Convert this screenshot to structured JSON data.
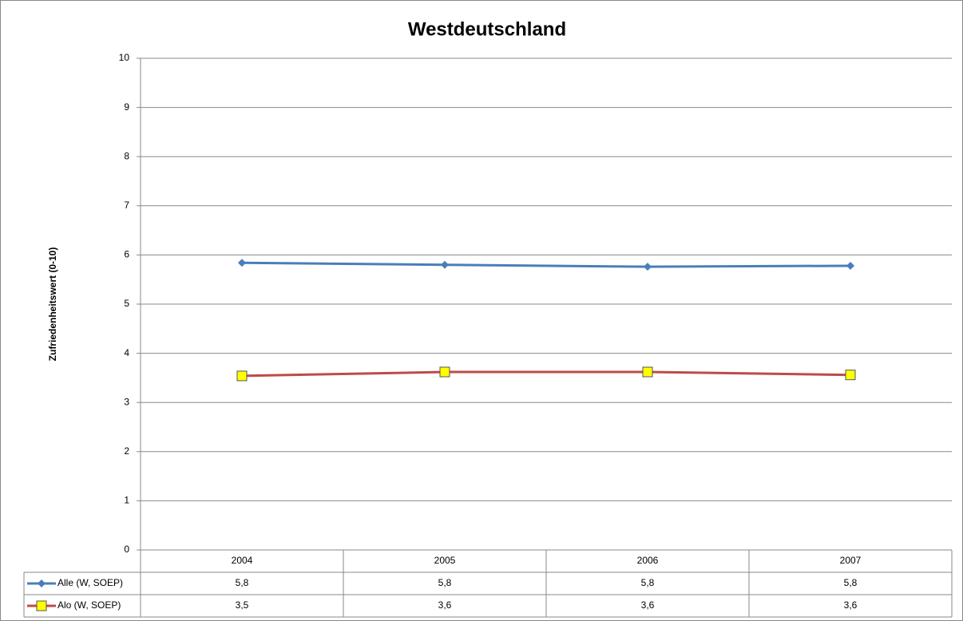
{
  "chart_data": {
    "type": "line",
    "title": "Westdeutschland",
    "y_label": "Zufriedenheitswert (0-10)",
    "categories": [
      "2004",
      "2005",
      "2006",
      "2007"
    ],
    "series": [
      {
        "name": "Alle (W, SOEP)",
        "color": "#4a7ebb",
        "marker": "diamond",
        "marker_color": "#4a7ebb",
        "values": [
          5.84,
          5.8,
          5.76,
          5.78
        ],
        "value_labels": [
          "5,8",
          "5,8",
          "5,8",
          "5,8"
        ]
      },
      {
        "name": "Alo (W, SOEP)",
        "color": "#be4b48",
        "marker": "square",
        "marker_color": "#ffff00",
        "values": [
          3.54,
          3.62,
          3.62,
          3.56
        ],
        "value_labels": [
          "3,5",
          "3,6",
          "3,6",
          "3,6"
        ]
      }
    ],
    "ylim": [
      0,
      10
    ],
    "yticks": [
      0,
      1,
      2,
      3,
      4,
      5,
      6,
      7,
      8,
      9,
      10
    ],
    "grid": true
  }
}
